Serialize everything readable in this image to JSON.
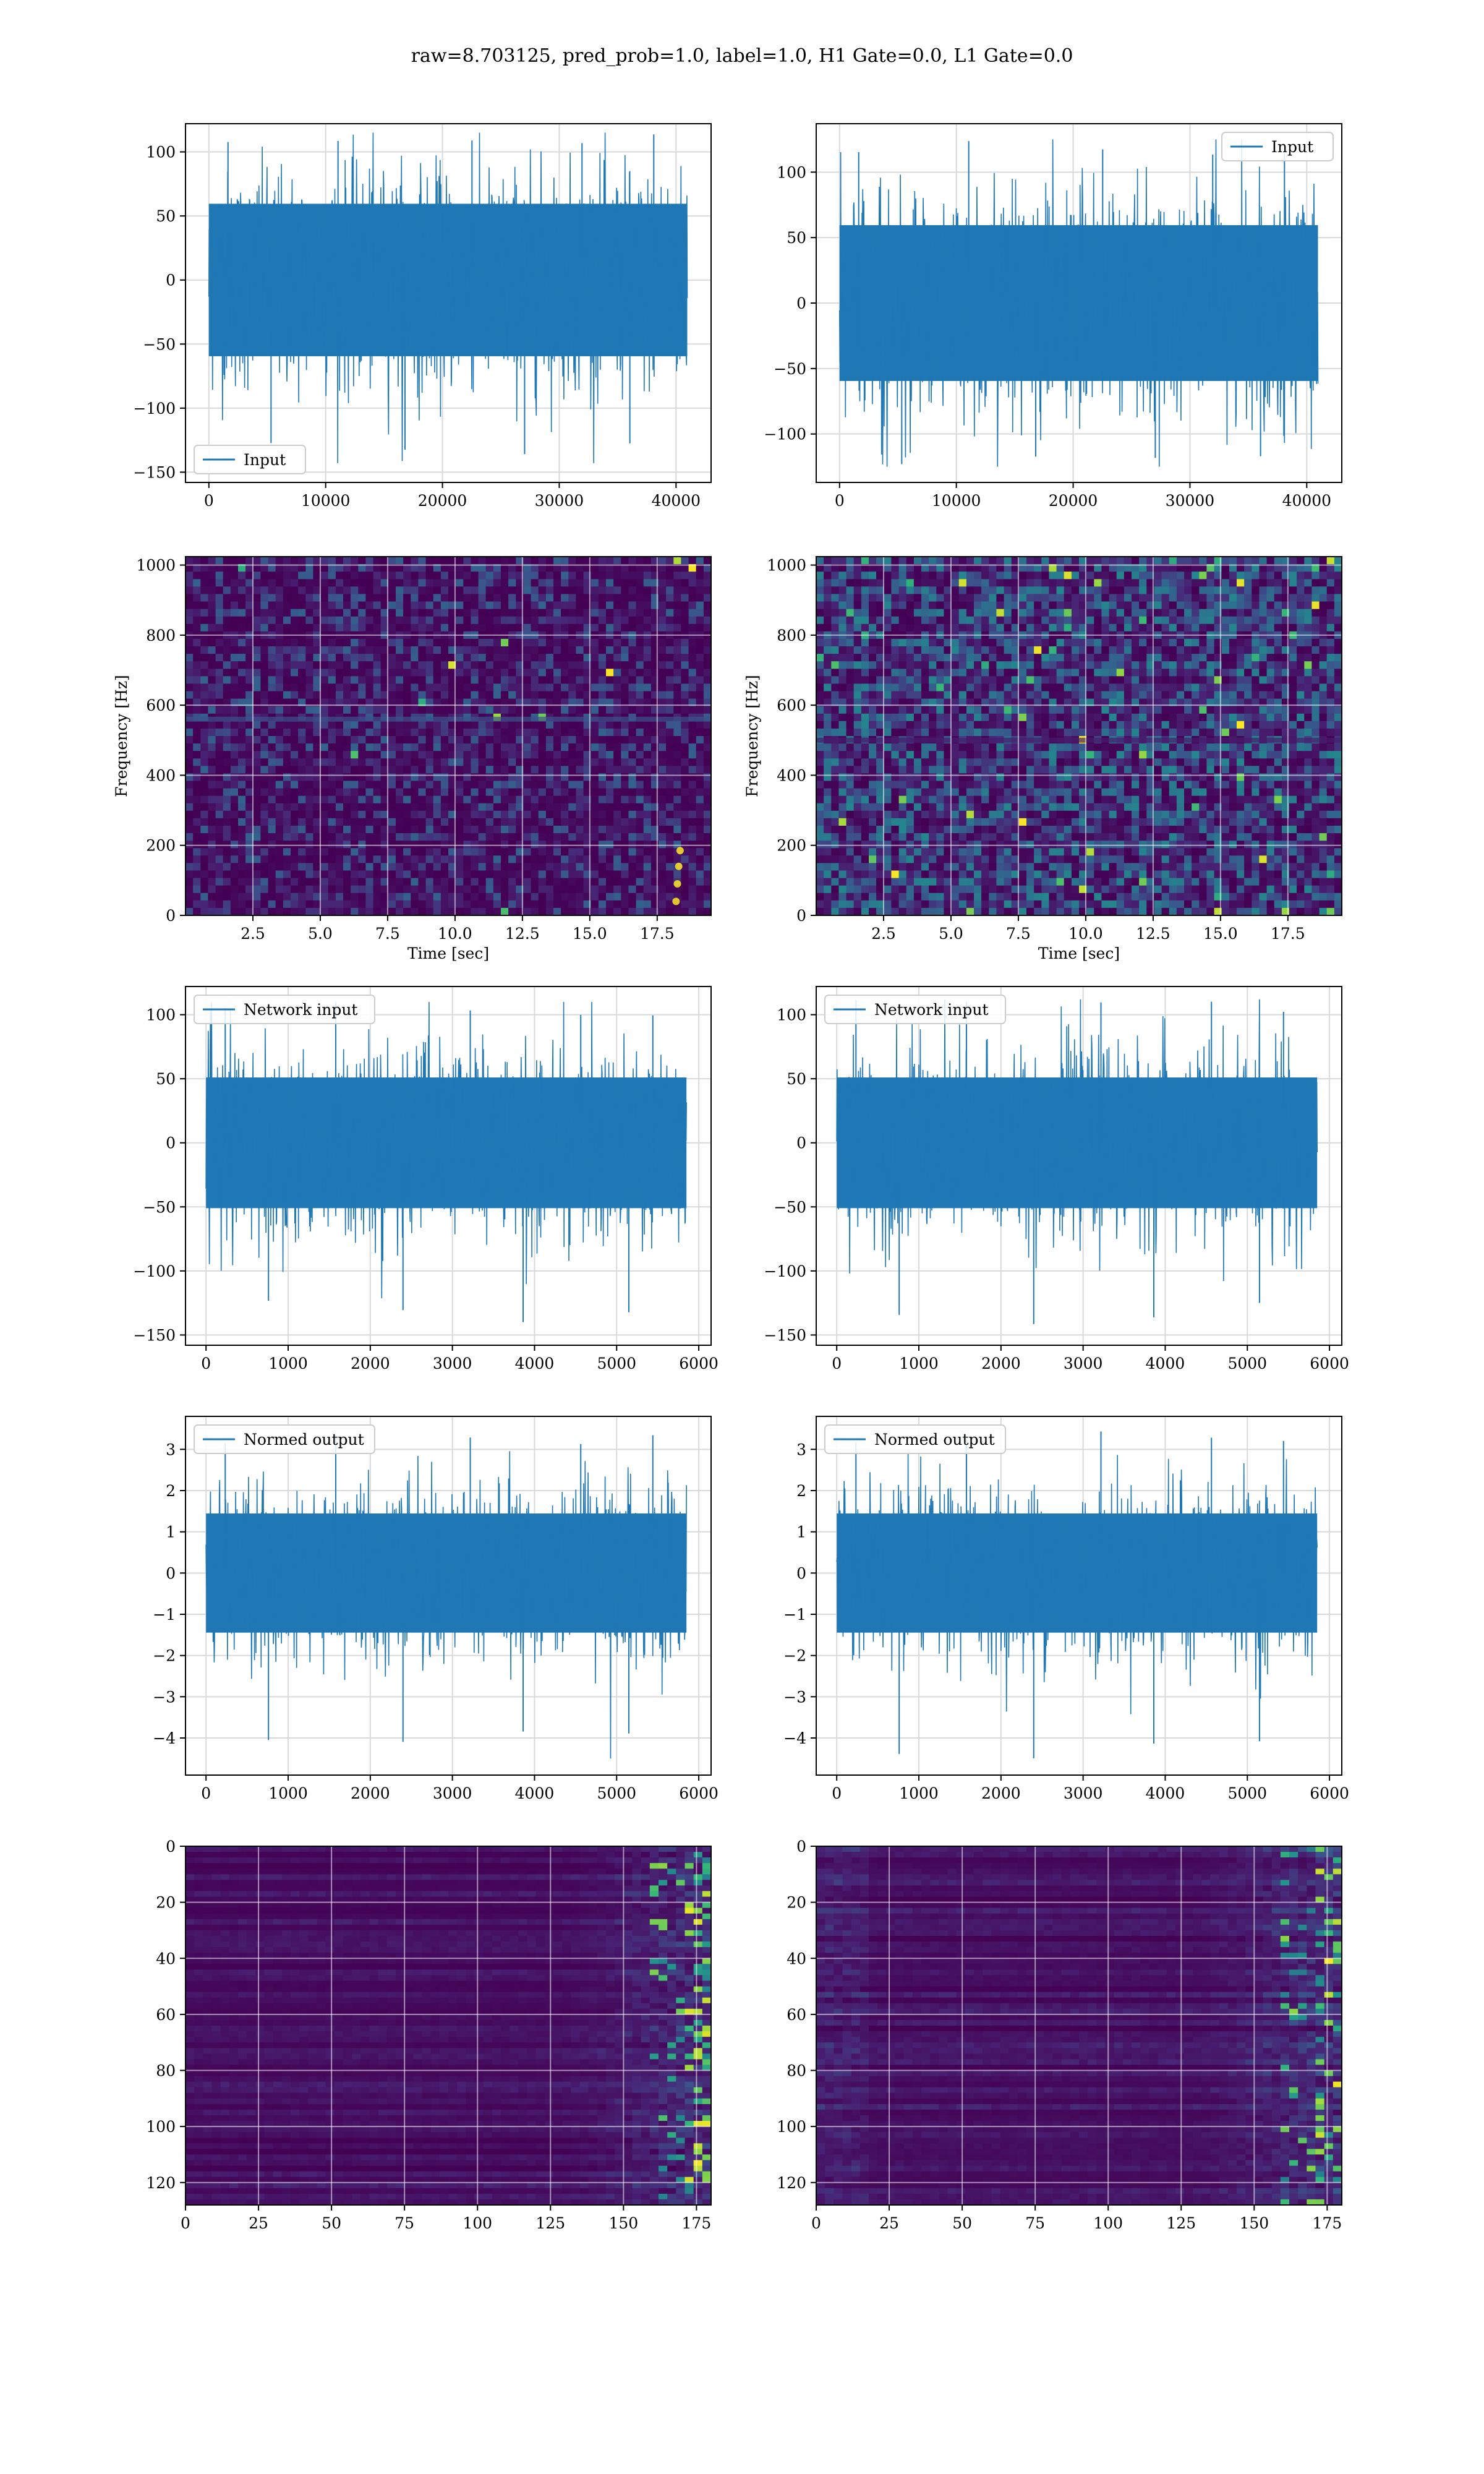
{
  "figure": {
    "title": "raw=8.703125, pred_prob=1.0, label=1.0, H1 Gate=0.0, L1 Gate=0.0"
  },
  "colors": {
    "line": "#1f77b4",
    "grid": "#d9d9d9",
    "viridis_dark": "#440154",
    "viridis_mid": "#21918c",
    "viridis_bright": "#fde725"
  },
  "chart_data": [
    {
      "id": "ts-input-h1",
      "type": "line",
      "series": [
        {
          "name": "Input",
          "x_range": [
            0,
            40960
          ],
          "envelope_min": -143,
          "envelope_max": 115,
          "typical_band": [
            -70,
            70
          ],
          "notes": "dense noise-like strain trace"
        }
      ],
      "legend": "lower-left",
      "xlim": [
        -2000,
        43000
      ],
      "ylim": [
        -158,
        122
      ],
      "xticks": [
        0,
        10000,
        20000,
        30000,
        40000
      ],
      "yticks": [
        -150,
        -100,
        -50,
        0,
        50,
        100
      ],
      "grid": true
    },
    {
      "id": "ts-input-l1",
      "type": "line",
      "series": [
        {
          "name": "Input",
          "x_range": [
            0,
            40960
          ],
          "envelope_min": -125,
          "envelope_max": 125,
          "typical_band": [
            -70,
            70
          ]
        }
      ],
      "legend": "upper-right",
      "xlim": [
        -2000,
        43000
      ],
      "ylim": [
        -137,
        137
      ],
      "xticks": [
        0,
        10000,
        20000,
        30000,
        40000
      ],
      "yticks": [
        -100,
        -50,
        0,
        50,
        100
      ],
      "grid": true
    },
    {
      "id": "spec-h1",
      "type": "heatmap",
      "description_values": {
        "colormap": "viridis",
        "x_range_sec": [
          0,
          19.5
        ],
        "y_range_hz": [
          0,
          1024
        ],
        "features": [
          "faint horizontal line near 560 Hz",
          "brief bright chirp near t=18.2 s below 200 Hz"
        ]
      },
      "xlabel": "Time [sec]",
      "ylabel": "Frequency [Hz]",
      "xlim": [
        0,
        19.5
      ],
      "ylim": [
        0,
        1024
      ],
      "xticks": [
        2.5,
        5.0,
        7.5,
        10.0,
        12.5,
        15.0,
        17.5
      ],
      "yticks": [
        0,
        200,
        400,
        600,
        800,
        1000
      ],
      "grid": true
    },
    {
      "id": "spec-l1",
      "type": "heatmap",
      "description_values": {
        "colormap": "viridis",
        "x_range_sec": [
          0,
          19.5
        ],
        "y_range_hz": [
          0,
          1024
        ],
        "features": [
          "brighter speckled noise",
          "horizontal line near 500 Hz"
        ]
      },
      "xlabel": "Time [sec]",
      "ylabel": "Frequency [Hz]",
      "xlim": [
        0,
        19.5
      ],
      "ylim": [
        0,
        1024
      ],
      "xticks": [
        2.5,
        5.0,
        7.5,
        10.0,
        12.5,
        15.0,
        17.5
      ],
      "yticks": [
        0,
        200,
        400,
        600,
        800,
        1000
      ],
      "grid": true
    },
    {
      "id": "ts-network-h1",
      "type": "line",
      "series": [
        {
          "name": "Network input",
          "x_range": [
            0,
            5850
          ],
          "envelope_min": -143,
          "envelope_max": 110,
          "typical_band": [
            -60,
            60
          ]
        }
      ],
      "legend": "upper-left",
      "xlim": [
        -250,
        6150
      ],
      "ylim": [
        -158,
        122
      ],
      "xticks": [
        0,
        1000,
        2000,
        3000,
        4000,
        5000,
        6000
      ],
      "yticks": [
        -150,
        -100,
        -50,
        0,
        50,
        100
      ],
      "grid": true
    },
    {
      "id": "ts-network-l1",
      "type": "line",
      "series": [
        {
          "name": "Network input",
          "x_range": [
            0,
            5850
          ],
          "envelope_min": -143,
          "envelope_max": 112,
          "typical_band": [
            -60,
            60
          ]
        }
      ],
      "legend": "upper-left",
      "xlim": [
        -250,
        6150
      ],
      "ylim": [
        -158,
        122
      ],
      "xticks": [
        0,
        1000,
        2000,
        3000,
        4000,
        5000,
        6000
      ],
      "yticks": [
        -150,
        -100,
        -50,
        0,
        50,
        100
      ],
      "grid": true
    },
    {
      "id": "ts-normed-h1",
      "type": "line",
      "series": [
        {
          "name": "Normed output",
          "x_range": [
            0,
            5850
          ],
          "envelope_min": -4.5,
          "envelope_max": 3.4,
          "typical_band": [
            -1.7,
            1.7
          ]
        }
      ],
      "legend": "upper-left",
      "xlim": [
        -250,
        6150
      ],
      "ylim": [
        -4.9,
        3.8
      ],
      "xticks": [
        0,
        1000,
        2000,
        3000,
        4000,
        5000,
        6000
      ],
      "yticks": [
        -4,
        -3,
        -2,
        -1,
        0,
        1,
        2,
        3
      ],
      "grid": true
    },
    {
      "id": "ts-normed-l1",
      "type": "line",
      "series": [
        {
          "name": "Normed output",
          "x_range": [
            0,
            5850
          ],
          "envelope_min": -4.5,
          "envelope_max": 3.5,
          "typical_band": [
            -1.7,
            1.7
          ]
        }
      ],
      "legend": "upper-left",
      "xlim": [
        -250,
        6150
      ],
      "ylim": [
        -4.9,
        3.8
      ],
      "xticks": [
        0,
        1000,
        2000,
        3000,
        4000,
        5000,
        6000
      ],
      "yticks": [
        -4,
        -3,
        -2,
        -1,
        0,
        1,
        2,
        3
      ],
      "grid": true
    },
    {
      "id": "feat-h1",
      "type": "heatmap",
      "description_values": {
        "colormap": "viridis",
        "rows": 128,
        "cols": 180,
        "features": [
          "horizontal streaks",
          "bright activations concentrated at columns 150-180"
        ]
      },
      "xlim": [
        0,
        180
      ],
      "ylim": [
        128,
        0
      ],
      "xticks": [
        0,
        25,
        50,
        75,
        100,
        125,
        150,
        175
      ],
      "yticks": [
        0,
        20,
        40,
        60,
        80,
        100,
        120
      ],
      "grid": true
    },
    {
      "id": "feat-l1",
      "type": "heatmap",
      "description_values": {
        "colormap": "viridis",
        "rows": 128,
        "cols": 180,
        "features": [
          "horizontal streaks",
          "bright activations at columns 150-178"
        ]
      },
      "xlim": [
        0,
        180
      ],
      "ylim": [
        128,
        0
      ],
      "xticks": [
        0,
        25,
        50,
        75,
        100,
        125,
        150,
        175
      ],
      "yticks": [
        0,
        20,
        40,
        60,
        80,
        100,
        120
      ],
      "grid": true
    }
  ]
}
